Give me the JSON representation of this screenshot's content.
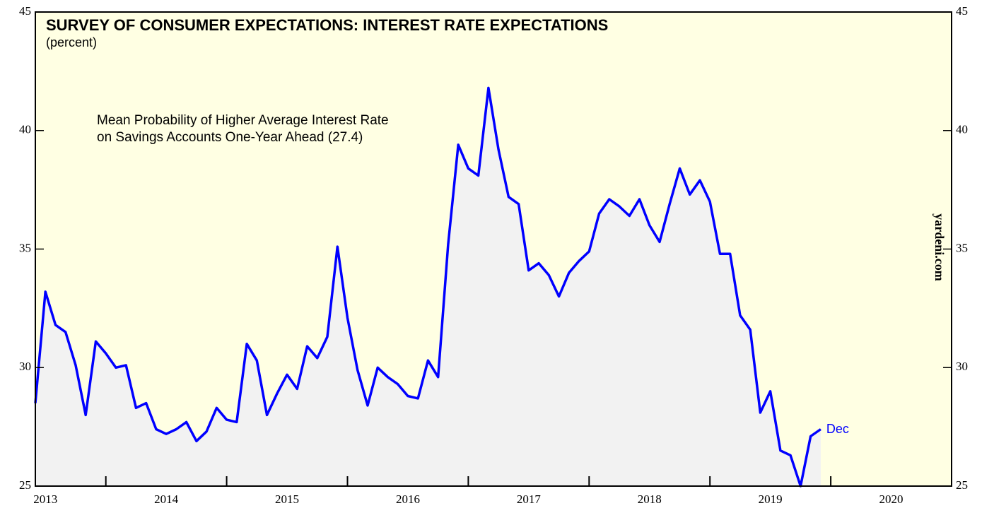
{
  "chart_data": {
    "type": "line",
    "title": "SURVEY OF CONSUMER EXPECTATIONS: INTEREST RATE EXPECTATIONS",
    "subtitle": "(percent)",
    "annotation": [
      "Mean Probability of Higher Average Interest Rate",
      "on Savings Accounts One-Year Ahead (27.4)"
    ],
    "end_label": "Dec",
    "source": "yardeni.com",
    "x": [
      "2013-06",
      "2013-07",
      "2013-08",
      "2013-09",
      "2013-10",
      "2013-11",
      "2013-12",
      "2014-01",
      "2014-02",
      "2014-03",
      "2014-04",
      "2014-05",
      "2014-06",
      "2014-07",
      "2014-08",
      "2014-09",
      "2014-10",
      "2014-11",
      "2014-12",
      "2015-01",
      "2015-02",
      "2015-03",
      "2015-04",
      "2015-05",
      "2015-06",
      "2015-07",
      "2015-08",
      "2015-09",
      "2015-10",
      "2015-11",
      "2015-12",
      "2016-01",
      "2016-02",
      "2016-03",
      "2016-04",
      "2016-05",
      "2016-06",
      "2016-07",
      "2016-08",
      "2016-09",
      "2016-10",
      "2016-11",
      "2016-12",
      "2017-01",
      "2017-02",
      "2017-03",
      "2017-04",
      "2017-05",
      "2017-06",
      "2017-07",
      "2017-08",
      "2017-09",
      "2017-10",
      "2017-11",
      "2017-12",
      "2018-01",
      "2018-02",
      "2018-03",
      "2018-04",
      "2018-05",
      "2018-06",
      "2018-07",
      "2018-08",
      "2018-09",
      "2018-10",
      "2018-11",
      "2018-12",
      "2019-01",
      "2019-02",
      "2019-03",
      "2019-04",
      "2019-05",
      "2019-06",
      "2019-07",
      "2019-08",
      "2019-09",
      "2019-10",
      "2019-11",
      "2019-12"
    ],
    "series": [
      {
        "name": "Mean Probability of Higher Average Interest Rate on Savings Accounts One-Year Ahead",
        "color": "#0000ff",
        "values": [
          28.5,
          33.2,
          31.8,
          31.5,
          30.1,
          28.0,
          31.1,
          30.6,
          30.0,
          30.1,
          28.3,
          28.5,
          27.4,
          27.2,
          27.4,
          27.7,
          26.9,
          27.3,
          28.3,
          27.8,
          27.7,
          31.0,
          30.3,
          28.0,
          28.9,
          29.7,
          29.1,
          30.9,
          30.4,
          31.3,
          35.1,
          32.1,
          29.9,
          28.4,
          30.0,
          29.6,
          29.3,
          28.8,
          28.7,
          30.3,
          29.6,
          35.2,
          39.4,
          38.4,
          38.1,
          41.8,
          39.2,
          37.2,
          36.9,
          34.1,
          34.4,
          33.9,
          33.0,
          34.0,
          34.5,
          34.9,
          36.5,
          37.1,
          36.8,
          36.4,
          37.1,
          36.0,
          35.3,
          36.9,
          38.4,
          37.3,
          37.9,
          37.0,
          34.8,
          34.8,
          32.2,
          31.6,
          28.1,
          29.0,
          26.5,
          26.3,
          25.0,
          27.1,
          27.4
        ]
      }
    ],
    "area_color": "#f2f2f2",
    "background": "#ffffe3",
    "xlim": [
      "2013-06",
      "2021-01"
    ],
    "xticks": [
      "2013",
      "2014",
      "2015",
      "2016",
      "2017",
      "2018",
      "2019",
      "2020"
    ],
    "ylim": [
      25,
      45
    ],
    "yticks": [
      25,
      30,
      35,
      40,
      45
    ]
  }
}
